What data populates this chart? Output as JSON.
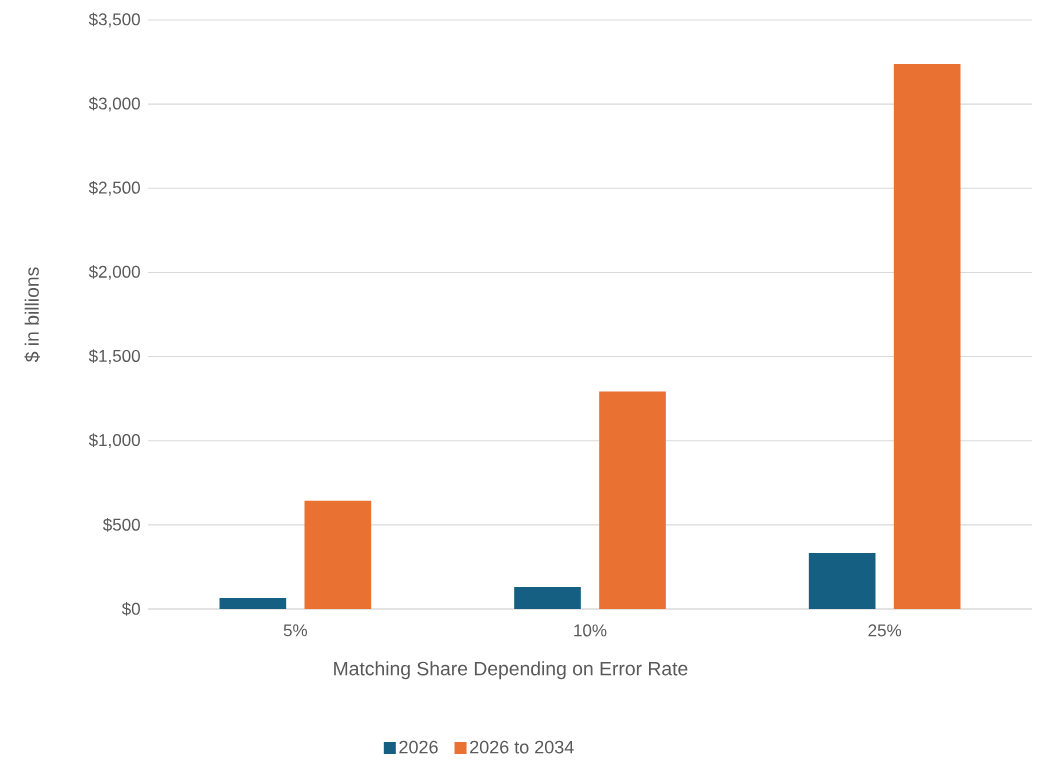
{
  "chart_data": {
    "type": "bar",
    "xlabel": "Matching Share Depending on Error Rate",
    "ylabel": "$ in billions",
    "categories": [
      "5%",
      "10%",
      "25%"
    ],
    "series": [
      {
        "name": "2026",
        "color": "#156082",
        "values": [
          65,
          131,
          333
        ]
      },
      {
        "name": "2026 to 2034",
        "color": "#e97132",
        "values": [
          643,
          1292,
          3238
        ]
      }
    ],
    "ylim": [
      0,
      3500
    ],
    "yticks": [
      {
        "value": 0,
        "label": "$0"
      },
      {
        "value": 500,
        "label": "$500"
      },
      {
        "value": 1000,
        "label": "$1,000"
      },
      {
        "value": 1500,
        "label": "$1,500"
      },
      {
        "value": 2000,
        "label": "$2,000"
      },
      {
        "value": 2500,
        "label": "$2,500"
      },
      {
        "value": 3000,
        "label": "$3,000"
      },
      {
        "value": 3500,
        "label": "$3,500"
      }
    ],
    "grid": "y",
    "legend": "bottom"
  }
}
